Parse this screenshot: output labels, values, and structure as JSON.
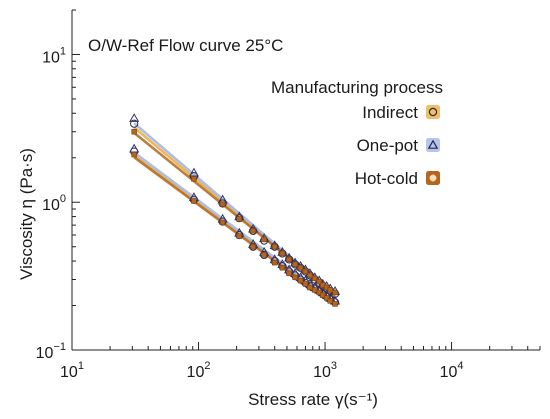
{
  "chart_data": {
    "type": "scatter",
    "title": "O/W-Ref  Flow curve 25°C",
    "xlabel": "Stress rate γ(s⁻¹)",
    "ylabel": "Viscosity η (Pa·s)",
    "xscale": "log",
    "yscale": "log",
    "xlim": [
      10,
      50000
    ],
    "ylim": [
      0.1,
      20
    ],
    "x_ticks": [
      {
        "value": 10,
        "base": "10",
        "exp": "1"
      },
      {
        "value": 100,
        "base": "10",
        "exp": "2"
      },
      {
        "value": 1000,
        "base": "10",
        "exp": "3"
      },
      {
        "value": 10000,
        "base": "10",
        "exp": "4"
      }
    ],
    "y_ticks": [
      {
        "value": 0.1,
        "base": "10",
        "exp": "−1"
      },
      {
        "value": 1,
        "base": "10",
        "exp": "0"
      },
      {
        "value": 10,
        "base": "10",
        "exp": "1"
      }
    ],
    "grid": false,
    "legend": {
      "title": "Manufacturing process",
      "placement": "top-right"
    },
    "series": [
      {
        "name": "Indirect",
        "marker": "circle",
        "color": "#E8A93A",
        "groups": [
          {
            "x": [
              31,
              92,
              155,
              210,
              270,
              330,
              400,
              460,
              520,
              580,
              640,
              700,
              760,
              830,
              900,
              960,
              1030,
              1100,
              1200
            ],
            "y": [
              2.2,
              1.04,
              0.74,
              0.6,
              0.5,
              0.44,
              0.4,
              0.37,
              0.34,
              0.32,
              0.3,
              0.285,
              0.27,
              0.26,
              0.25,
              0.24,
              0.23,
              0.22,
              0.21
            ]
          },
          {
            "x": [
              31,
              92,
              155,
              210,
              270,
              330,
              400,
              460,
              520,
              580,
              640,
              700,
              760,
              830,
              900,
              960,
              1030,
              1100,
              1200
            ],
            "y": [
              3.4,
              1.5,
              0.98,
              0.78,
              0.64,
              0.55,
              0.5,
              0.45,
              0.41,
              0.38,
              0.36,
              0.34,
              0.32,
              0.3,
              0.285,
              0.27,
              0.26,
              0.25,
              0.24
            ]
          }
        ]
      },
      {
        "name": "One-pot",
        "marker": "triangle",
        "color": "#9FB3E0",
        "groups": [
          {
            "x": [
              31,
              92,
              155,
              210,
              270,
              330,
              400,
              460,
              520,
              580,
              640,
              700,
              760,
              830,
              900,
              960,
              1030,
              1100,
              1200
            ],
            "y": [
              2.3,
              1.08,
              0.77,
              0.62,
              0.52,
              0.46,
              0.41,
              0.38,
              0.35,
              0.33,
              0.31,
              0.295,
              0.28,
              0.265,
              0.255,
              0.245,
              0.235,
              0.225,
              0.215
            ]
          },
          {
            "x": [
              31,
              92,
              155,
              210,
              270,
              330,
              400,
              460,
              520,
              580,
              640,
              700,
              760,
              830,
              900,
              960,
              1030,
              1100,
              1200
            ],
            "y": [
              3.7,
              1.58,
              1.04,
              0.8,
              0.66,
              0.57,
              0.51,
              0.46,
              0.42,
              0.39,
              0.37,
              0.35,
              0.33,
              0.31,
              0.295,
              0.28,
              0.27,
              0.26,
              0.25
            ]
          }
        ]
      },
      {
        "name": "Hot-cold",
        "marker": "square",
        "color": "#B5651D",
        "groups": [
          {
            "x": [
              31,
              92,
              155,
              210,
              270,
              330,
              400,
              460,
              520,
              580,
              640,
              700,
              760,
              830,
              900,
              960,
              1030,
              1100,
              1200
            ],
            "y": [
              2.1,
              1.02,
              0.73,
              0.59,
              0.5,
              0.44,
              0.39,
              0.36,
              0.33,
              0.31,
              0.295,
              0.28,
              0.265,
              0.255,
              0.245,
              0.235,
              0.225,
              0.215,
              0.205
            ]
          },
          {
            "x": [
              31,
              92,
              155,
              210,
              270,
              330,
              400,
              460,
              520,
              580,
              640,
              700,
              760,
              830,
              900,
              960,
              1030,
              1100,
              1200
            ],
            "y": [
              3.0,
              1.44,
              0.97,
              0.77,
              0.64,
              0.56,
              0.5,
              0.45,
              0.41,
              0.38,
              0.36,
              0.34,
              0.32,
              0.305,
              0.29,
              0.275,
              0.265,
              0.255,
              0.245
            ]
          }
        ]
      }
    ]
  }
}
